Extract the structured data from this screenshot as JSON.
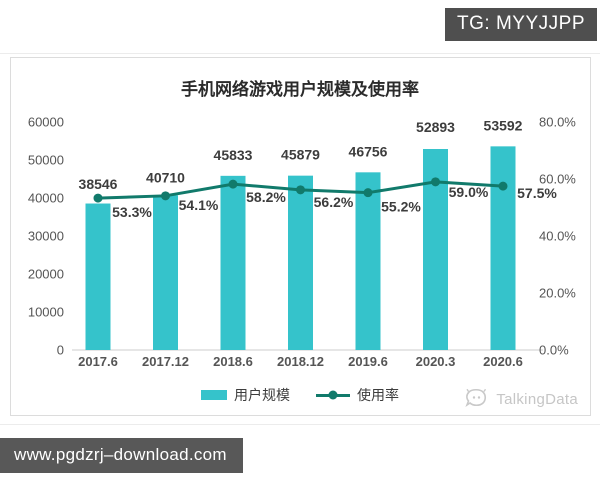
{
  "overlay": {
    "tg_badge": "TG: MYYJJPP",
    "watermark": "www.pgdzrj–download.com"
  },
  "branding": {
    "logo_text": "TalkingData"
  },
  "chart_data": {
    "type": "bar+line combo",
    "title": "手机网络游戏用户规模及使用率",
    "categories": [
      "2017.6",
      "2017.12",
      "2018.6",
      "2018.12",
      "2019.6",
      "2020.3",
      "2020.6"
    ],
    "series": [
      {
        "name": "用户规模",
        "type": "bar",
        "axis": "left",
        "values": [
          38546,
          40710,
          45833,
          45879,
          46756,
          52893,
          53592
        ],
        "value_labels": [
          "38546",
          "40710",
          "45833",
          "45879",
          "46756",
          "52893",
          "53592"
        ],
        "color": "#35c3cb"
      },
      {
        "name": "使用率",
        "type": "line",
        "axis": "right",
        "values": [
          53.3,
          54.1,
          58.2,
          56.2,
          55.2,
          59.0,
          57.5
        ],
        "value_labels": [
          "53.3%",
          "54.1%",
          "58.2%",
          "56.2%",
          "55.2%",
          "59.0%",
          "57.5%"
        ],
        "color": "#117a6b"
      }
    ],
    "left_axis": {
      "min": 0,
      "max": 60000,
      "tick_values": [
        0,
        10000,
        20000,
        30000,
        40000,
        50000,
        60000
      ],
      "tick_labels": [
        "0",
        "10000",
        "20000",
        "30000",
        "40000",
        "50000",
        "60000"
      ]
    },
    "right_axis": {
      "min": 0,
      "max": 80,
      "tick_values": [
        0,
        20,
        40,
        60,
        80
      ],
      "tick_labels": [
        "0.0%",
        "20.0%",
        "40.0%",
        "60.0%",
        "80.0%"
      ]
    },
    "grid": false,
    "legend_position": "bottom",
    "text_color": "#3d3d3d",
    "axis_text_color": "#555555",
    "axis_line_color": "#cccccc"
  }
}
